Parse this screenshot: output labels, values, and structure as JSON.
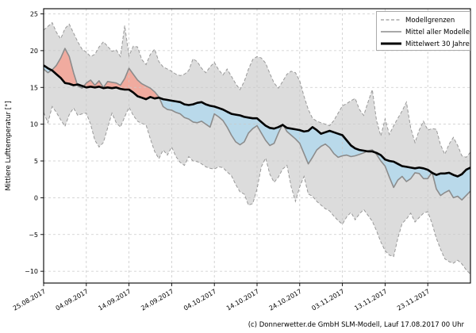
{
  "figure": {
    "caption": "(c) Donnerwetter.de GmbH SLM-Modell, Lauf 17.08.2017 00 Uhr"
  },
  "chart_data": {
    "type": "line",
    "title": "",
    "xlabel": "",
    "ylabel": "Mittlere Lufttemperatur [°]",
    "ylim": [
      -11.6,
      25.7
    ],
    "grid": true,
    "legend_position": "upper right",
    "legend": [
      "Modellgrenzen",
      "Mittel aller Modelle",
      "Mittelwert 30 Jahre"
    ],
    "yticks": [
      25,
      20,
      15,
      10,
      5,
      0,
      -5,
      -10
    ],
    "ytick_labels": [
      "25",
      "20",
      "15",
      "10",
      "5",
      "0",
      "−5",
      "−10"
    ],
    "xtick_labels": [
      "25.08.2017",
      "04.09.2017",
      "14.09.2017",
      "24.09.2017",
      "04.10.2017",
      "14.10.2017",
      "24.10.2017",
      "03.11.2017",
      "13.11.2017",
      "23.11.2017"
    ],
    "xtick_days": [
      0,
      10,
      20,
      30,
      40,
      50,
      60,
      70,
      80,
      90
    ],
    "x_unit": "days since 25.08.2017, daily values",
    "n_points": 101,
    "colors": {
      "band_fill": "#dcdcdc",
      "boundary_line": "#999999",
      "model_mean_line": "#8c8c8c",
      "mean30_line": "#000000",
      "warm_fill": "#f0ab9f",
      "cold_fill": "#b9d9ea",
      "grid": "#c9c9c9"
    },
    "series": [
      {
        "name": "Modellgrenzen (Maximum)",
        "style": "dashed",
        "color": "#999999",
        "values": [
          22.8,
          23.3,
          23.8,
          22.5,
          21.6,
          23.0,
          23.6,
          22.4,
          21.2,
          20.2,
          19.8,
          19.2,
          19.5,
          20.5,
          21.2,
          20.6,
          19.9,
          20.1,
          19.2,
          23.4,
          19.3,
          20.6,
          20.5,
          18.8,
          18.1,
          19.5,
          20.2,
          18.5,
          17.8,
          17.5,
          17.2,
          16.8,
          16.6,
          16.8,
          17.3,
          18.9,
          18.5,
          17.6,
          17.0,
          17.8,
          18.4,
          17.4,
          16.7,
          17.5,
          16.5,
          15.5,
          14.7,
          15.8,
          17.5,
          18.8,
          19.2,
          19.0,
          18.3,
          16.9,
          15.6,
          14.9,
          15.8,
          16.8,
          17.2,
          17.0,
          15.9,
          13.8,
          12.0,
          10.8,
          10.4,
          10.2,
          10.0,
          9.8,
          10.5,
          11.5,
          12.5,
          12.8,
          13.2,
          13.5,
          12.0,
          11.2,
          13.0,
          14.7,
          10.5,
          8.4,
          10.7,
          8.6,
          9.8,
          10.8,
          11.8,
          13.0,
          9.5,
          7.5,
          9.2,
          10.4,
          9.2,
          9.4,
          9.3,
          7.2,
          5.9,
          7.3,
          8.2,
          7.1,
          5.7,
          5.5,
          6.2
        ]
      },
      {
        "name": "Modellgrenzen (Minimum)",
        "style": "dashed",
        "color": "#999999",
        "values": [
          11.6,
          10.2,
          12.4,
          11.6,
          10.6,
          9.7,
          11.3,
          12.2,
          11.2,
          11.4,
          11.5,
          10.0,
          7.8,
          6.9,
          7.5,
          9.5,
          11.5,
          10.2,
          9.6,
          11.0,
          12.3,
          11.2,
          10.4,
          10.1,
          9.9,
          8.0,
          6.3,
          5.3,
          6.5,
          5.8,
          6.9,
          5.6,
          4.8,
          4.4,
          5.6,
          5.0,
          4.9,
          4.6,
          4.2,
          4.0,
          3.9,
          4.2,
          4.1,
          3.5,
          3.0,
          1.8,
          0.8,
          0.5,
          -1.0,
          -0.8,
          1.2,
          4.2,
          5.4,
          3.2,
          2.1,
          2.8,
          3.9,
          4.4,
          1.5,
          -0.5,
          1.5,
          2.9,
          0.5,
          0.2,
          -0.5,
          -1.0,
          -1.5,
          -1.8,
          -2.5,
          -3.1,
          -3.6,
          -2.6,
          -2.0,
          -3.0,
          -2.2,
          -1.6,
          -2.4,
          -3.2,
          -4.5,
          -6.0,
          -7.2,
          -7.8,
          -8.0,
          -5.5,
          -3.5,
          -2.9,
          -2.1,
          -3.3,
          -2.7,
          -2.1,
          -1.9,
          -3.5,
          -5.5,
          -7.0,
          -8.3,
          -8.7,
          -8.9,
          -8.5,
          -9.0,
          -9.8,
          -10.4
        ]
      },
      {
        "name": "Mittel aller Modelle",
        "style": "solid",
        "color": "#8c8c8c",
        "values": [
          17.5,
          17.0,
          17.4,
          18.0,
          19.0,
          20.3,
          19.2,
          17.0,
          15.2,
          14.9,
          15.6,
          16.0,
          15.3,
          15.9,
          15.0,
          15.8,
          15.7,
          15.6,
          15.3,
          16.2,
          17.6,
          16.8,
          16.0,
          15.5,
          15.2,
          14.9,
          14.4,
          13.7,
          12.4,
          12.0,
          11.9,
          11.6,
          11.4,
          10.9,
          10.7,
          10.3,
          10.2,
          10.4,
          10.0,
          9.6,
          11.4,
          11.0,
          10.5,
          9.6,
          8.5,
          7.6,
          7.2,
          7.6,
          8.8,
          9.4,
          9.8,
          8.8,
          7.8,
          7.1,
          7.4,
          8.8,
          10.0,
          9.0,
          8.5,
          8.0,
          7.4,
          6.0,
          4.6,
          5.5,
          6.5,
          7.0,
          7.3,
          6.8,
          6.0,
          5.5,
          5.7,
          5.8,
          5.6,
          5.7,
          5.9,
          6.1,
          6.4,
          6.5,
          5.9,
          5.0,
          4.3,
          2.8,
          1.4,
          2.4,
          2.9,
          2.2,
          2.6,
          3.4,
          3.3,
          2.6,
          2.6,
          3.5,
          1.2,
          0.3,
          0.7,
          1.0,
          0.0,
          0.2,
          -0.3,
          0.3,
          0.9
        ]
      },
      {
        "name": "Mittelwert 30 Jahre",
        "style": "solid-bold",
        "color": "#000000",
        "values": [
          18.0,
          17.6,
          17.3,
          16.8,
          16.3,
          15.6,
          15.5,
          15.3,
          15.4,
          15.2,
          15.0,
          15.1,
          15.0,
          15.1,
          14.9,
          15.0,
          14.9,
          15.0,
          14.8,
          14.7,
          14.7,
          14.3,
          13.8,
          13.6,
          13.4,
          13.7,
          13.5,
          13.6,
          13.4,
          13.3,
          13.2,
          13.1,
          13.0,
          12.7,
          12.6,
          12.7,
          12.9,
          13.0,
          12.7,
          12.5,
          12.4,
          12.2,
          12.0,
          11.7,
          11.4,
          11.3,
          11.2,
          11.0,
          10.9,
          10.8,
          10.8,
          10.3,
          9.8,
          9.5,
          9.4,
          9.6,
          9.9,
          9.5,
          9.4,
          9.3,
          9.2,
          9.0,
          9.1,
          9.6,
          9.2,
          8.7,
          8.9,
          9.1,
          8.9,
          8.7,
          8.5,
          7.8,
          7.1,
          6.7,
          6.5,
          6.4,
          6.3,
          6.3,
          6.1,
          5.8,
          5.2,
          5.0,
          4.9,
          4.6,
          4.3,
          4.2,
          4.1,
          4.0,
          4.1,
          4.0,
          3.8,
          3.4,
          3.1,
          3.3,
          3.3,
          3.4,
          3.1,
          2.9,
          3.2,
          3.8,
          4.1
        ]
      }
    ],
    "fills": [
      {
        "name": "band",
        "between": [
          "Modellgrenzen (Maximum)",
          "Modellgrenzen (Minimum)"
        ],
        "color": "#dcdcdc"
      },
      {
        "name": "warm-anomaly",
        "where": "Mittel aller Modelle > Mittelwert 30 Jahre",
        "color": "#f0ab9f"
      },
      {
        "name": "cold-anomaly",
        "where": "Mittel aller Modelle < Mittelwert 30 Jahre",
        "color": "#b9d9ea"
      }
    ]
  }
}
